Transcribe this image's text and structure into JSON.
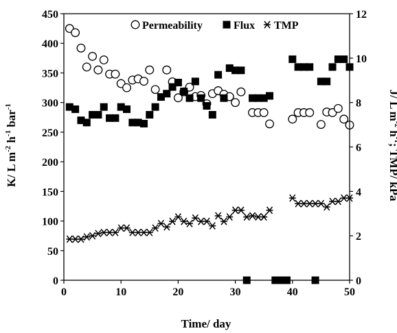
{
  "chart_data": {
    "type": "scatter",
    "title": "",
    "xlabel": "Time/ day",
    "ylabel_left": "K/ L m-2 h-1 bar-1",
    "ylabel_right": "J/ L m-2 h-1; TMP/ kPa",
    "xlim": [
      0,
      50
    ],
    "ylim_left": [
      0,
      450
    ],
    "ylim_right": [
      0,
      12
    ],
    "x_ticks": [
      0,
      10,
      20,
      30,
      40,
      50
    ],
    "y_left_ticks": [
      0,
      50,
      100,
      150,
      200,
      250,
      300,
      350,
      400,
      450
    ],
    "y_right_ticks": [
      0,
      2,
      4,
      6,
      8,
      10,
      12
    ],
    "grid": false,
    "legend_position": "top-right",
    "series": [
      {
        "name": "Permeability",
        "axis": "left",
        "marker": "open-circle",
        "points": [
          [
            1,
            425
          ],
          [
            2,
            418
          ],
          [
            3,
            392
          ],
          [
            4,
            360
          ],
          [
            5,
            378
          ],
          [
            6,
            355
          ],
          [
            7,
            372
          ],
          [
            8,
            348
          ],
          [
            9,
            348
          ],
          [
            10,
            332
          ],
          [
            11,
            325
          ],
          [
            12,
            338
          ],
          [
            13,
            340
          ],
          [
            14,
            336
          ],
          [
            15,
            355
          ],
          [
            16,
            322
          ],
          [
            18,
            355
          ],
          [
            19,
            335
          ],
          [
            20,
            308
          ],
          [
            21,
            318
          ],
          [
            22,
            326
          ],
          [
            23,
            310
          ],
          [
            24,
            312
          ],
          [
            25,
            298
          ],
          [
            26,
            315
          ],
          [
            27,
            320
          ],
          [
            28,
            314
          ],
          [
            29,
            310
          ],
          [
            30,
            300
          ],
          [
            31,
            318
          ],
          [
            33,
            283
          ],
          [
            34,
            283
          ],
          [
            35,
            283
          ],
          [
            36,
            264
          ],
          [
            40,
            272
          ],
          [
            41,
            283
          ],
          [
            42,
            283
          ],
          [
            43,
            283
          ],
          [
            45,
            263
          ],
          [
            46,
            284
          ],
          [
            47,
            283
          ],
          [
            48,
            290
          ],
          [
            49,
            272
          ],
          [
            50,
            262
          ]
        ]
      },
      {
        "name": "Flux",
        "axis": "right",
        "marker": "filled-square",
        "points": [
          [
            1,
            7.8
          ],
          [
            2,
            7.7
          ],
          [
            3,
            7.2
          ],
          [
            4,
            7.1
          ],
          [
            5,
            7.45
          ],
          [
            6,
            7.45
          ],
          [
            7,
            7.8
          ],
          [
            8,
            7.3
          ],
          [
            9,
            7.3
          ],
          [
            10,
            7.8
          ],
          [
            11,
            7.7
          ],
          [
            12,
            7.1
          ],
          [
            13,
            7.1
          ],
          [
            14,
            7.05
          ],
          [
            15,
            7.45
          ],
          [
            16,
            7.8
          ],
          [
            17,
            8.25
          ],
          [
            18,
            8.4
          ],
          [
            19,
            8.7
          ],
          [
            20,
            8.9
          ],
          [
            21,
            8.5
          ],
          [
            22,
            8.2
          ],
          [
            23,
            8.95
          ],
          [
            24,
            8.2
          ],
          [
            25,
            7.85
          ],
          [
            26,
            7.45
          ],
          [
            27,
            9.25
          ],
          [
            28,
            8.2
          ],
          [
            29,
            9.55
          ],
          [
            30,
            9.45
          ],
          [
            31,
            9.45
          ],
          [
            32,
            0
          ],
          [
            33,
            8.2
          ],
          [
            34,
            8.2
          ],
          [
            35,
            8.2
          ],
          [
            36,
            8.3
          ],
          [
            37,
            0
          ],
          [
            38,
            0
          ],
          [
            39,
            0
          ],
          [
            40,
            9.95
          ],
          [
            41,
            9.6
          ],
          [
            42,
            9.6
          ],
          [
            43,
            9.6
          ],
          [
            44,
            0
          ],
          [
            45,
            8.95
          ],
          [
            46,
            8.95
          ],
          [
            47,
            9.6
          ],
          [
            48,
            9.95
          ],
          [
            49,
            9.95
          ],
          [
            50,
            9.6
          ]
        ]
      },
      {
        "name": "TMP",
        "axis": "right",
        "marker": "asterisk",
        "points": [
          [
            1,
            1.85
          ],
          [
            2,
            1.85
          ],
          [
            3,
            1.85
          ],
          [
            4,
            1.95
          ],
          [
            5,
            2.0
          ],
          [
            6,
            2.1
          ],
          [
            7,
            2.15
          ],
          [
            8,
            2.15
          ],
          [
            9,
            2.15
          ],
          [
            10,
            2.35
          ],
          [
            11,
            2.35
          ],
          [
            12,
            2.15
          ],
          [
            13,
            2.15
          ],
          [
            14,
            2.15
          ],
          [
            15,
            2.15
          ],
          [
            16,
            2.35
          ],
          [
            17,
            2.55
          ],
          [
            18,
            2.4
          ],
          [
            19,
            2.65
          ],
          [
            20,
            2.85
          ],
          [
            21,
            2.65
          ],
          [
            22,
            2.55
          ],
          [
            23,
            2.8
          ],
          [
            24,
            2.65
          ],
          [
            25,
            2.65
          ],
          [
            26,
            2.45
          ],
          [
            27,
            2.9
          ],
          [
            28,
            2.65
          ],
          [
            29,
            2.85
          ],
          [
            30,
            3.15
          ],
          [
            31,
            3.15
          ],
          [
            32,
            2.85
          ],
          [
            33,
            2.9
          ],
          [
            34,
            2.85
          ],
          [
            35,
            2.85
          ],
          [
            36,
            3.15
          ],
          [
            40,
            3.7
          ],
          [
            41,
            3.45
          ],
          [
            42,
            3.45
          ],
          [
            43,
            3.45
          ],
          [
            44,
            3.45
          ],
          [
            45,
            3.45
          ],
          [
            46,
            3.3
          ],
          [
            47,
            3.55
          ],
          [
            48,
            3.55
          ],
          [
            49,
            3.7
          ],
          [
            50,
            3.7
          ]
        ]
      }
    ]
  }
}
